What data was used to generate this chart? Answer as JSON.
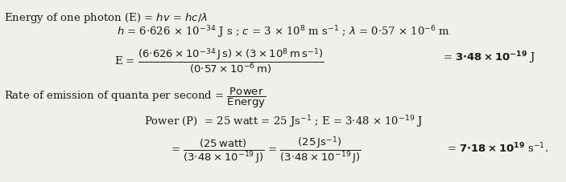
{
  "bg_color": "#f0f0eb",
  "text_color": "#1a1a1a",
  "figsize": [
    7.03,
    2.27
  ],
  "dpi": 100
}
